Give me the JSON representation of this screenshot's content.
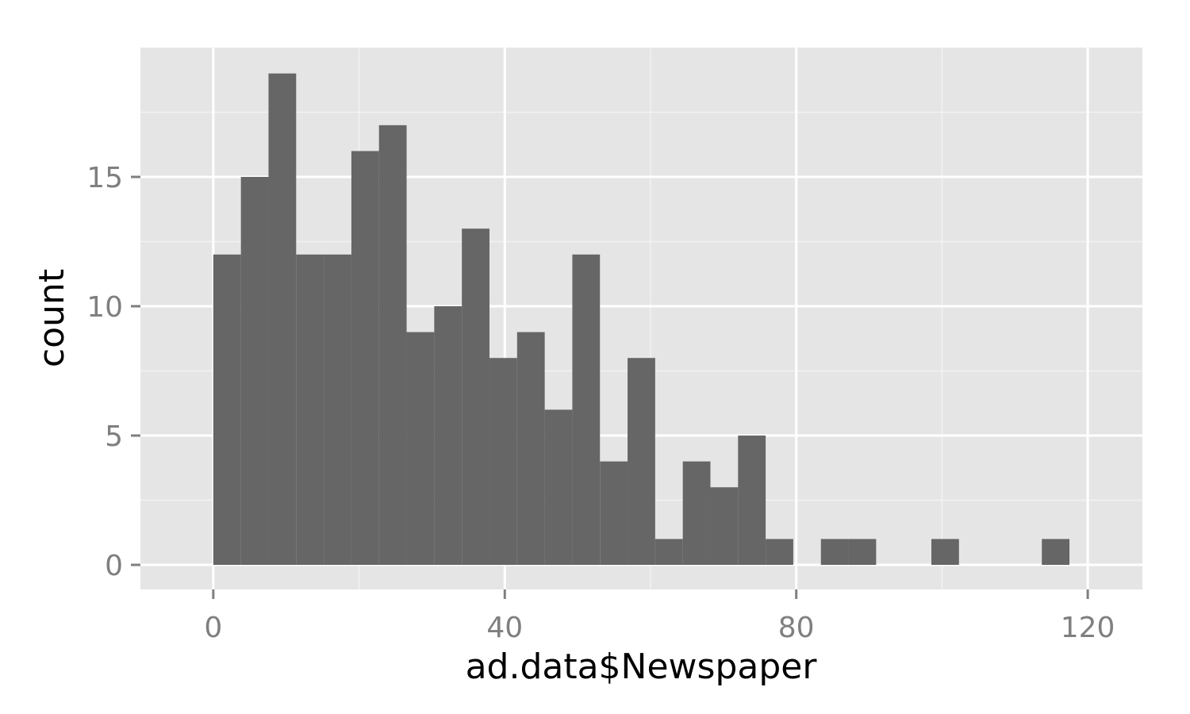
{
  "chart_data": {
    "type": "bar",
    "subtype": "histogram",
    "xlabel": "ad.data$Newspaper",
    "ylabel": "count",
    "xlim": [
      -10,
      127.5
    ],
    "ylim": [
      -0.95,
      20
    ],
    "x_ticks": [
      0,
      40,
      80,
      120
    ],
    "x_minor_ticks": [
      20,
      60,
      100
    ],
    "y_ticks": [
      0,
      5,
      10,
      15
    ],
    "y_minor_ticks": [
      2.5,
      7.5,
      12.5,
      17.5
    ],
    "grid": true,
    "bin_width": 3.79,
    "bins_start": 0,
    "values": [
      12,
      15,
      19,
      12,
      12,
      16,
      17,
      9,
      10,
      13,
      8,
      9,
      6,
      12,
      4,
      8,
      1,
      4,
      3,
      5,
      1,
      0,
      1,
      1,
      0,
      0,
      1,
      0,
      0,
      0,
      1
    ],
    "colors": {
      "bar": "#666666",
      "panel": "#e5e5e5",
      "grid_major": "#ffffff",
      "grid_minor": "#f2f2f2",
      "tick_text": "#7f7f7f",
      "axis_title": "#000000"
    }
  }
}
